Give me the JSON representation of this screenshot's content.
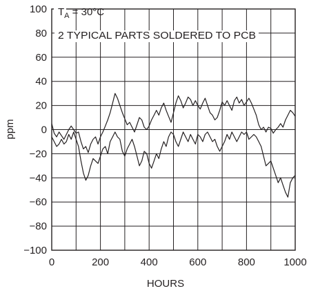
{
  "chart_data": {
    "type": "line",
    "xlabel": "HOURS",
    "ylabel": "ppm",
    "xlim": [
      0,
      1000
    ],
    "ylim": [
      -100,
      100
    ],
    "x_ticks": [
      0,
      200,
      400,
      600,
      800,
      1000
    ],
    "y_ticks": [
      100,
      80,
      60,
      40,
      20,
      0,
      -20,
      -40,
      -60,
      -80,
      -100
    ],
    "x_tick_labels": [
      "0",
      "200",
      "400",
      "600",
      "800",
      "1000"
    ],
    "y_tick_labels": [
      "100",
      "80",
      "60",
      "40",
      "20",
      "0",
      "−20",
      "−40",
      "−60",
      "−80",
      "−100"
    ],
    "grid": true,
    "annotation": {
      "line1_prefix": "T",
      "line1_sub": "A",
      "line1_suffix": " = 30°C",
      "line2": "2 TYPICAL PARTS SOLDERED TO PCB"
    },
    "series": [
      {
        "x": [
          0,
          10,
          20,
          30,
          40,
          50,
          60,
          70,
          80,
          90,
          100,
          110,
          120,
          130,
          140,
          150,
          160,
          170,
          180,
          190,
          200,
          210,
          220,
          230,
          240,
          250,
          260,
          270,
          280,
          290,
          300,
          310,
          320,
          330,
          340,
          350,
          360,
          370,
          380,
          390,
          400,
          410,
          420,
          430,
          440,
          450,
          460,
          470,
          480,
          490,
          500,
          510,
          520,
          530,
          540,
          550,
          560,
          570,
          580,
          590,
          600,
          610,
          620,
          630,
          640,
          650,
          660,
          670,
          680,
          690,
          700,
          710,
          720,
          730,
          740,
          750,
          760,
          770,
          780,
          790,
          800,
          810,
          820,
          830,
          840,
          850,
          860,
          870,
          880,
          890,
          900,
          910,
          920,
          930,
          940,
          950,
          960,
          970,
          980,
          990,
          1000
        ],
        "values": [
          5,
          -3,
          -6,
          -2,
          -5,
          -8,
          -4,
          0,
          3,
          0,
          -3,
          -2,
          -10,
          -16,
          -14,
          -19,
          -12,
          -8,
          -6,
          -12,
          -6,
          -2,
          3,
          8,
          14,
          22,
          30,
          26,
          20,
          14,
          9,
          4,
          6,
          2,
          -2,
          4,
          10,
          8,
          2,
          0,
          3,
          8,
          12,
          16,
          12,
          18,
          22,
          16,
          11,
          6,
          14,
          22,
          28,
          24,
          18,
          22,
          27,
          25,
          20,
          24,
          20,
          17,
          22,
          26,
          20,
          14,
          12,
          8,
          10,
          16,
          23,
          20,
          24,
          20,
          16,
          24,
          27,
          22,
          25,
          20,
          23,
          26,
          22,
          17,
          12,
          4,
          0,
          2,
          -2,
          2,
          1,
          -3,
          0,
          2,
          5,
          2,
          8,
          12,
          16,
          14,
          11
        ]
      },
      {
        "x": [
          0,
          10,
          20,
          30,
          40,
          50,
          60,
          70,
          80,
          90,
          100,
          110,
          120,
          130,
          140,
          150,
          160,
          170,
          180,
          190,
          200,
          210,
          220,
          230,
          240,
          250,
          260,
          270,
          280,
          290,
          300,
          310,
          320,
          330,
          340,
          350,
          360,
          370,
          380,
          390,
          400,
          410,
          420,
          430,
          440,
          450,
          460,
          470,
          480,
          490,
          500,
          510,
          520,
          530,
          540,
          550,
          560,
          570,
          580,
          590,
          600,
          610,
          620,
          630,
          640,
          650,
          660,
          670,
          680,
          690,
          700,
          710,
          720,
          730,
          740,
          750,
          760,
          770,
          780,
          790,
          800,
          810,
          820,
          830,
          840,
          850,
          860,
          870,
          880,
          890,
          900,
          910,
          920,
          930,
          940,
          950,
          960,
          970,
          980,
          990,
          1000
        ],
        "values": [
          -6,
          -10,
          -14,
          -12,
          -8,
          -12,
          -10,
          -4,
          -8,
          -2,
          -8,
          -14,
          -26,
          -36,
          -42,
          -38,
          -30,
          -24,
          -26,
          -28,
          -22,
          -16,
          -14,
          -20,
          -10,
          -6,
          -2,
          -6,
          -8,
          -18,
          -22,
          -16,
          -12,
          -8,
          -14,
          -22,
          -30,
          -26,
          -18,
          -20,
          -28,
          -32,
          -26,
          -20,
          -24,
          -16,
          -10,
          -14,
          -6,
          -2,
          -4,
          -10,
          -14,
          -8,
          -2,
          -6,
          -10,
          -4,
          -8,
          -12,
          -4,
          -6,
          -10,
          -4,
          -2,
          -6,
          -10,
          -8,
          -14,
          -18,
          -14,
          -10,
          -4,
          -8,
          -2,
          -6,
          -10,
          -6,
          -2,
          -4,
          -2,
          -8,
          -6,
          -4,
          -6,
          -10,
          -14,
          -22,
          -30,
          -28,
          -26,
          -32,
          -38,
          -44,
          -40,
          -46,
          -52,
          -56,
          -44,
          -40,
          -38
        ]
      }
    ]
  }
}
